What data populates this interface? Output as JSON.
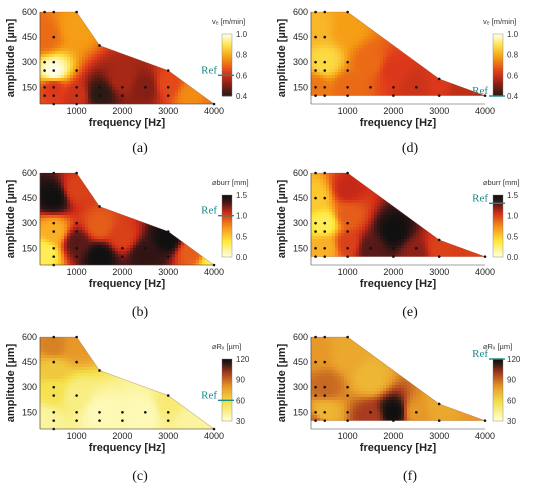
{
  "figure": {
    "ref_label": "Ref",
    "x_axis_label": "frequency [Hz]",
    "y_axis_label": "amplitude [µm]",
    "colorbar_titles": {
      "vc": "vₑ [m/min]",
      "burr": "⌀burr [mm]",
      "rz": "⌀Rₓ [µm]"
    }
  },
  "chart_data": [
    {
      "panel": "(a)",
      "type": "heatmap",
      "metric": "vc",
      "xlabel": "frequency [Hz]",
      "ylabel": "amplitude [µm]",
      "xlim": [
        200,
        4000
      ],
      "ylim": [
        50,
        600
      ],
      "xticks": [
        1000,
        2000,
        3000,
        4000
      ],
      "yticks": [
        150,
        300,
        450,
        600
      ],
      "colorbar": {
        "title": "vₑ [m/min]",
        "ticks": [
          "1.0",
          "0.8",
          "0.6",
          "0.4"
        ],
        "range": [
          0.4,
          1.0
        ],
        "ref_value": 0.6,
        "ref_label": "Ref"
      },
      "boundary": [
        [
          200,
          600
        ],
        [
          1000,
          600
        ],
        [
          1500,
          400
        ],
        [
          3000,
          250
        ],
        [
          4000,
          50
        ],
        [
          200,
          50
        ]
      ],
      "samples": [
        [
          300,
          600
        ],
        [
          500,
          600
        ],
        [
          1000,
          600
        ],
        [
          500,
          450
        ],
        [
          1500,
          400
        ],
        [
          300,
          300
        ],
        [
          500,
          300
        ],
        [
          300,
          250
        ],
        [
          500,
          250
        ],
        [
          1000,
          250
        ],
        [
          3000,
          250
        ],
        [
          300,
          150
        ],
        [
          500,
          150
        ],
        [
          1000,
          150
        ],
        [
          1500,
          150
        ],
        [
          2000,
          150
        ],
        [
          2500,
          150
        ],
        [
          3000,
          150
        ],
        [
          300,
          100
        ],
        [
          500,
          100
        ],
        [
          1000,
          100
        ],
        [
          1500,
          100
        ],
        [
          2000,
          100
        ],
        [
          3000,
          100
        ],
        [
          500,
          50
        ],
        [
          1000,
          50
        ],
        [
          4000,
          50
        ]
      ],
      "field_points": [
        [
          500,
          240,
          1.0
        ],
        [
          300,
          450,
          0.7
        ],
        [
          1000,
          500,
          0.78
        ],
        [
          500,
          150,
          0.62
        ],
        [
          1500,
          110,
          0.4
        ],
        [
          2500,
          150,
          0.5
        ],
        [
          2000,
          200,
          0.55
        ],
        [
          3000,
          170,
          0.65
        ],
        [
          3500,
          100,
          0.75
        ],
        [
          1000,
          100,
          0.6
        ],
        [
          4000,
          60,
          0.72
        ]
      ]
    },
    {
      "panel": "(b)",
      "type": "heatmap",
      "metric": "burr",
      "xlabel": "frequency [Hz]",
      "ylabel": "amplitude [µm]",
      "xlim": [
        200,
        4000
      ],
      "ylim": [
        50,
        600
      ],
      "xticks": [
        1000,
        2000,
        3000,
        4000
      ],
      "yticks": [
        150,
        300,
        450,
        600
      ],
      "colorbar": {
        "title": "⌀burr [mm]",
        "ticks": [
          "1.5",
          "1.0",
          "0.5",
          "0.0"
        ],
        "range": [
          0.0,
          1.5
        ],
        "ref_value": 1.0,
        "ref_label": "Ref"
      },
      "boundary": [
        [
          200,
          600
        ],
        [
          1000,
          600
        ],
        [
          1500,
          400
        ],
        [
          3000,
          250
        ],
        [
          4000,
          50
        ],
        [
          200,
          50
        ]
      ],
      "samples": [
        [
          500,
          600
        ],
        [
          1000,
          600
        ],
        [
          500,
          450
        ],
        [
          1500,
          400
        ],
        [
          500,
          300
        ],
        [
          1000,
          300
        ],
        [
          500,
          250
        ],
        [
          1000,
          250
        ],
        [
          3000,
          250
        ],
        [
          500,
          150
        ],
        [
          1000,
          150
        ],
        [
          1500,
          150
        ],
        [
          2000,
          150
        ],
        [
          2500,
          150
        ],
        [
          3000,
          150
        ],
        [
          500,
          100
        ],
        [
          1000,
          100
        ],
        [
          1500,
          100
        ],
        [
          2000,
          100
        ],
        [
          3000,
          100
        ],
        [
          500,
          50
        ],
        [
          4000,
          50
        ]
      ],
      "field_points": [
        [
          500,
          450,
          1.5
        ],
        [
          1000,
          500,
          1.0
        ],
        [
          500,
          250,
          0.6
        ],
        [
          1000,
          180,
          1.3
        ],
        [
          1500,
          100,
          1.5
        ],
        [
          2500,
          110,
          1.4
        ],
        [
          3000,
          210,
          1.5
        ],
        [
          2000,
          220,
          1.0
        ],
        [
          1500,
          280,
          0.9
        ],
        [
          3500,
          130,
          0.9
        ],
        [
          4000,
          60,
          0.3
        ],
        [
          300,
          120,
          0.3
        ]
      ]
    },
    {
      "panel": "(c)",
      "type": "heatmap",
      "metric": "rz",
      "xlabel": "frequency [Hz]",
      "ylabel": "amplitude [µm]",
      "xlim": [
        200,
        4000
      ],
      "ylim": [
        50,
        600
      ],
      "xticks": [
        1000,
        2000,
        3000,
        4000
      ],
      "yticks": [
        150,
        300,
        450,
        600
      ],
      "colorbar": {
        "title": "⌀Rₓ [µm]",
        "ticks": [
          "120",
          "90",
          "60",
          "30"
        ],
        "range": [
          30,
          120
        ],
        "ref_value": 60,
        "ref_label": "Ref"
      },
      "boundary": [
        [
          200,
          600
        ],
        [
          1000,
          600
        ],
        [
          1500,
          400
        ],
        [
          3000,
          250
        ],
        [
          4000,
          50
        ],
        [
          200,
          50
        ]
      ],
      "samples": [
        [
          500,
          600
        ],
        [
          1000,
          600
        ],
        [
          500,
          450
        ],
        [
          1000,
          450
        ],
        [
          1500,
          400
        ],
        [
          500,
          300
        ],
        [
          500,
          250
        ],
        [
          1000,
          250
        ],
        [
          3000,
          250
        ],
        [
          500,
          150
        ],
        [
          1000,
          150
        ],
        [
          1500,
          150
        ],
        [
          2000,
          150
        ],
        [
          2500,
          150
        ],
        [
          3000,
          150
        ],
        [
          500,
          100
        ],
        [
          1000,
          100
        ],
        [
          1500,
          100
        ],
        [
          2000,
          100
        ],
        [
          3000,
          100
        ],
        [
          500,
          50
        ],
        [
          4000,
          50
        ]
      ],
      "field_points": [
        [
          500,
          550,
          85
        ],
        [
          1000,
          550,
          80
        ],
        [
          500,
          400,
          65
        ],
        [
          500,
          280,
          55
        ],
        [
          1000,
          250,
          45
        ],
        [
          1500,
          150,
          35
        ],
        [
          2500,
          150,
          35
        ],
        [
          3000,
          200,
          48
        ],
        [
          3500,
          100,
          40
        ],
        [
          4000,
          60,
          40
        ],
        [
          300,
          100,
          40
        ]
      ]
    },
    {
      "panel": "(d)",
      "type": "heatmap",
      "metric": "vc",
      "xlabel": "frequency [Hz]",
      "ylabel": "amplitude [µm]",
      "xlim": [
        200,
        4000
      ],
      "ylim": [
        50,
        600
      ],
      "xticks": [
        1000,
        2000,
        3000,
        4000
      ],
      "yticks": [
        150,
        300,
        450,
        600
      ],
      "colorbar": {
        "title": "vₑ [m/min]",
        "ticks": [
          "1.0",
          "0.8",
          "0.6",
          "0.4"
        ],
        "range": [
          0.4,
          1.0
        ],
        "ref_value": 0.4,
        "ref_label": "Ref"
      },
      "boundary": [
        [
          200,
          600
        ],
        [
          1000,
          600
        ],
        [
          3000,
          200
        ],
        [
          4000,
          100
        ],
        [
          200,
          100
        ]
      ],
      "samples": [
        [
          300,
          600
        ],
        [
          500,
          600
        ],
        [
          1000,
          600
        ],
        [
          300,
          450
        ],
        [
          500,
          450
        ],
        [
          300,
          300
        ],
        [
          500,
          300
        ],
        [
          1000,
          300
        ],
        [
          300,
          250
        ],
        [
          500,
          250
        ],
        [
          1000,
          250
        ],
        [
          3000,
          200
        ],
        [
          300,
          150
        ],
        [
          500,
          150
        ],
        [
          1000,
          150
        ],
        [
          1500,
          150
        ],
        [
          2000,
          150
        ],
        [
          2500,
          150
        ],
        [
          300,
          100
        ],
        [
          500,
          100
        ],
        [
          1000,
          100
        ],
        [
          2000,
          100
        ],
        [
          3000,
          100
        ],
        [
          4000,
          100
        ]
      ],
      "field_points": [
        [
          500,
          300,
          0.88
        ],
        [
          300,
          500,
          0.82
        ],
        [
          1000,
          500,
          0.78
        ],
        [
          1500,
          300,
          0.7
        ],
        [
          2000,
          250,
          0.62
        ],
        [
          2500,
          150,
          0.6
        ],
        [
          3000,
          180,
          0.62
        ],
        [
          3500,
          120,
          0.58
        ],
        [
          4000,
          100,
          0.55
        ],
        [
          1000,
          150,
          0.7
        ],
        [
          300,
          150,
          0.72
        ]
      ]
    },
    {
      "panel": "(e)",
      "type": "heatmap",
      "metric": "burr",
      "xlabel": "frequency [Hz]",
      "ylabel": "amplitude [µm]",
      "xlim": [
        200,
        4000
      ],
      "ylim": [
        50,
        600
      ],
      "xticks": [
        1000,
        2000,
        3000,
        4000
      ],
      "yticks": [
        150,
        300,
        450,
        600
      ],
      "colorbar": {
        "title": "⌀burr [mm]",
        "ticks": [
          "1.5",
          "1.0",
          "0.5",
          "0.0"
        ],
        "range": [
          0.0,
          1.5
        ],
        "ref_value": 1.3,
        "ref_label": "Ref"
      },
      "boundary": [
        [
          200,
          600
        ],
        [
          1000,
          600
        ],
        [
          3000,
          200
        ],
        [
          4000,
          100
        ],
        [
          200,
          100
        ]
      ],
      "samples": [
        [
          300,
          600
        ],
        [
          500,
          600
        ],
        [
          1000,
          600
        ],
        [
          300,
          450
        ],
        [
          500,
          450
        ],
        [
          300,
          300
        ],
        [
          500,
          300
        ],
        [
          1000,
          300
        ],
        [
          300,
          250
        ],
        [
          500,
          250
        ],
        [
          1000,
          250
        ],
        [
          3000,
          200
        ],
        [
          300,
          150
        ],
        [
          500,
          150
        ],
        [
          1000,
          150
        ],
        [
          1500,
          150
        ],
        [
          2000,
          150
        ],
        [
          2500,
          150
        ],
        [
          300,
          100
        ],
        [
          500,
          100
        ],
        [
          1000,
          100
        ],
        [
          2000,
          100
        ],
        [
          3000,
          100
        ],
        [
          4000,
          100
        ]
      ],
      "field_points": [
        [
          500,
          300,
          0.3
        ],
        [
          300,
          450,
          0.5
        ],
        [
          1000,
          500,
          1.1
        ],
        [
          1000,
          350,
          0.9
        ],
        [
          2000,
          250,
          1.5
        ],
        [
          1500,
          150,
          1.3
        ],
        [
          2500,
          120,
          1.2
        ],
        [
          3000,
          150,
          1.0
        ],
        [
          4000,
          100,
          1.0
        ],
        [
          500,
          150,
          0.6
        ],
        [
          1000,
          180,
          1.0
        ]
      ]
    },
    {
      "panel": "(f)",
      "type": "heatmap",
      "metric": "rz",
      "xlabel": "frequency [Hz]",
      "ylabel": "amplitude [µm]",
      "xlim": [
        200,
        4000
      ],
      "ylim": [
        50,
        600
      ],
      "xticks": [
        1000,
        2000,
        3000,
        4000
      ],
      "yticks": [
        150,
        300,
        450,
        600
      ],
      "colorbar": {
        "title": "⌀Rₓ [µm]",
        "ticks": [
          "120",
          "90",
          "60",
          "30"
        ],
        "range": [
          30,
          120
        ],
        "ref_value": 120,
        "ref_label": "Ref"
      },
      "boundary": [
        [
          200,
          600
        ],
        [
          1000,
          600
        ],
        [
          3000,
          200
        ],
        [
          4000,
          100
        ],
        [
          200,
          100
        ]
      ],
      "samples": [
        [
          300,
          600
        ],
        [
          500,
          600
        ],
        [
          1000,
          600
        ],
        [
          300,
          450
        ],
        [
          500,
          450
        ],
        [
          300,
          300
        ],
        [
          500,
          300
        ],
        [
          1000,
          300
        ],
        [
          300,
          250
        ],
        [
          500,
          250
        ],
        [
          1000,
          250
        ],
        [
          3000,
          200
        ],
        [
          300,
          150
        ],
        [
          500,
          150
        ],
        [
          1000,
          150
        ],
        [
          1500,
          150
        ],
        [
          2000,
          150
        ],
        [
          2500,
          150
        ],
        [
          300,
          100
        ],
        [
          500,
          100
        ],
        [
          1000,
          100
        ],
        [
          2000,
          100
        ],
        [
          3000,
          100
        ],
        [
          4000,
          100
        ]
      ],
      "field_points": [
        [
          500,
          300,
          90
        ],
        [
          300,
          500,
          80
        ],
        [
          1000,
          500,
          75
        ],
        [
          1500,
          350,
          70
        ],
        [
          2000,
          150,
          120
        ],
        [
          1500,
          120,
          100
        ],
        [
          2500,
          150,
          80
        ],
        [
          3000,
          180,
          75
        ],
        [
          4000,
          100,
          80
        ],
        [
          500,
          150,
          70
        ],
        [
          300,
          80,
          90
        ]
      ]
    }
  ]
}
